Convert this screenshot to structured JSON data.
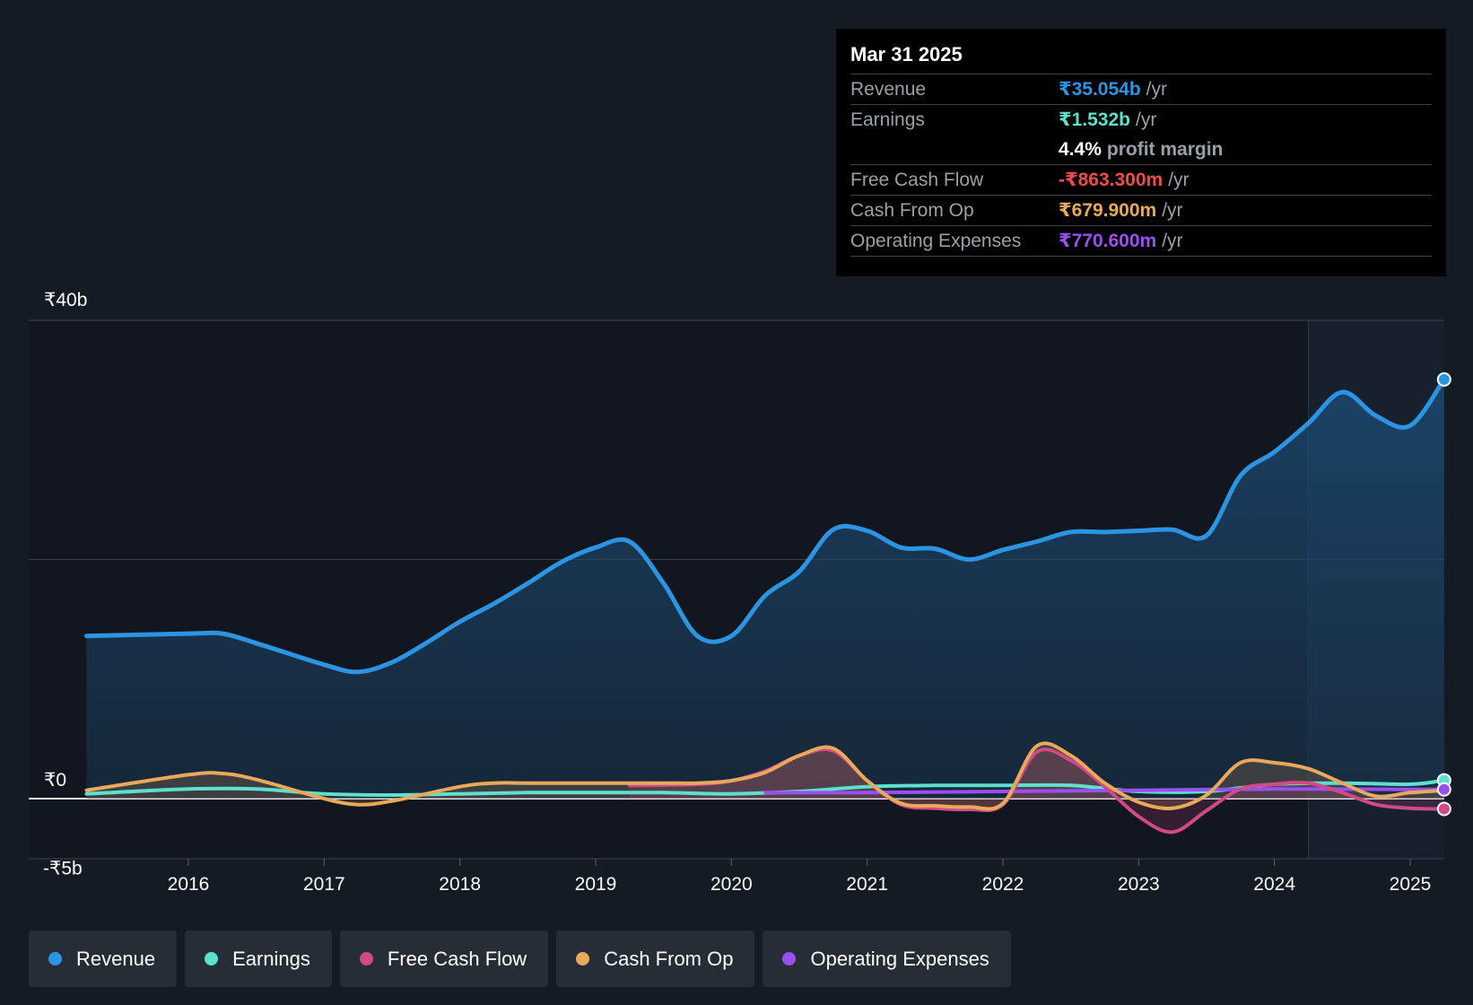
{
  "colors": {
    "revenue": "#2b95e3",
    "earnings": "#5ee0cf",
    "fcf": "#cf4a86",
    "cfo": "#e8a95a",
    "opex": "#9b4ff0",
    "negative": "#f04b4b",
    "background": "#151b24",
    "plot_bg": "#161c24"
  },
  "tooltip": {
    "date": "Mar 31 2025",
    "revenue": {
      "label": "Revenue",
      "value": "₹35.054b",
      "unit": "/yr"
    },
    "earnings": {
      "label": "Earnings",
      "value": "₹1.532b",
      "unit": "/yr"
    },
    "margin": {
      "value": "4.4%",
      "label": "profit margin"
    },
    "fcf": {
      "label": "Free Cash Flow",
      "value": "-₹863.300m",
      "unit": "/yr"
    },
    "cfo": {
      "label": "Cash From Op",
      "value": "₹679.900m",
      "unit": "/yr"
    },
    "opex": {
      "label": "Operating Expenses",
      "value": "₹770.600m",
      "unit": "/yr"
    }
  },
  "legend": [
    {
      "label": "Revenue",
      "key": "revenue"
    },
    {
      "label": "Earnings",
      "key": "earnings"
    },
    {
      "label": "Free Cash Flow",
      "key": "fcf"
    },
    {
      "label": "Cash From Op",
      "key": "cfo"
    },
    {
      "label": "Operating Expenses",
      "key": "opex"
    }
  ],
  "chart_data": {
    "type": "area",
    "title": "",
    "xlabel": "",
    "ylabel": "",
    "unit": "₹ billions",
    "xlim": [
      2015.25,
      2025.25
    ],
    "ylim": [
      -5,
      40
    ],
    "y_tick_labels": [
      {
        "value": 40,
        "label": "₹40b"
      },
      {
        "value": 0,
        "label": "₹0"
      },
      {
        "value": -5,
        "label": "-₹5b"
      }
    ],
    "gridlines": [
      40,
      20,
      0
    ],
    "x_tick_labels": [
      "2016",
      "2017",
      "2018",
      "2019",
      "2020",
      "2021",
      "2022",
      "2023",
      "2024",
      "2025"
    ],
    "x_ticks": [
      2016,
      2017,
      2018,
      2019,
      2020,
      2021,
      2022,
      2023,
      2024,
      2025
    ],
    "highlight_start": 2024.25,
    "series": [
      {
        "name": "Revenue",
        "key": "revenue",
        "x": [
          2015.25,
          2016.0,
          2016.25,
          2016.5,
          2017.0,
          2017.25,
          2017.5,
          2017.75,
          2018.0,
          2018.25,
          2018.5,
          2018.75,
          2019.0,
          2019.25,
          2019.5,
          2019.75,
          2020.0,
          2020.25,
          2020.5,
          2020.75,
          2021.0,
          2021.25,
          2021.5,
          2021.75,
          2022.0,
          2022.25,
          2022.5,
          2022.75,
          2023.0,
          2023.25,
          2023.5,
          2023.75,
          2024.0,
          2024.25,
          2024.5,
          2024.75,
          2025.0,
          2025.25
        ],
        "values": [
          13.6,
          13.8,
          13.8,
          13.0,
          11.2,
          10.6,
          11.4,
          13.0,
          14.8,
          16.3,
          18.0,
          19.8,
          21.0,
          21.5,
          18.0,
          13.6,
          13.6,
          17.0,
          19.0,
          22.5,
          22.4,
          21.0,
          20.9,
          20.0,
          20.8,
          21.5,
          22.3,
          22.3,
          22.4,
          22.5,
          22.0,
          27.0,
          29.0,
          31.4,
          34.0,
          32.0,
          31.2,
          35.054
        ]
      },
      {
        "name": "Earnings",
        "key": "earnings",
        "x": [
          2015.25,
          2016.0,
          2016.5,
          2017.0,
          2017.5,
          2018.0,
          2018.5,
          2019.0,
          2019.5,
          2020.0,
          2020.5,
          2021.0,
          2021.5,
          2022.0,
          2022.5,
          2023.0,
          2023.5,
          2024.0,
          2024.5,
          2025.0,
          2025.25
        ],
        "values": [
          0.4,
          0.8,
          0.8,
          0.4,
          0.3,
          0.4,
          0.5,
          0.5,
          0.5,
          0.4,
          0.6,
          1.0,
          1.1,
          1.1,
          1.1,
          0.6,
          0.6,
          1.2,
          1.3,
          1.2,
          1.532
        ]
      },
      {
        "name": "Free Cash Flow",
        "key": "fcf",
        "x": [
          2019.25,
          2019.75,
          2020.0,
          2020.25,
          2020.5,
          2020.75,
          2021.0,
          2021.25,
          2021.5,
          2021.75,
          2022.0,
          2022.25,
          2022.5,
          2022.75,
          2023.0,
          2023.25,
          2023.5,
          2023.75,
          2024.0,
          2024.25,
          2024.5,
          2024.75,
          2025.0,
          2025.25
        ],
        "values": [
          1.1,
          1.2,
          1.5,
          2.3,
          3.6,
          4.0,
          1.5,
          -0.5,
          -0.8,
          -0.9,
          -0.5,
          3.9,
          3.2,
          1.0,
          -1.5,
          -2.8,
          -1.0,
          0.8,
          1.2,
          1.3,
          0.5,
          -0.5,
          -0.8,
          -0.8633
        ]
      },
      {
        "name": "Cash From Op",
        "key": "cfo",
        "x": [
          2015.25,
          2016.0,
          2016.25,
          2016.5,
          2017.0,
          2017.25,
          2017.5,
          2018.0,
          2018.25,
          2018.5,
          2019.0,
          2019.5,
          2019.75,
          2020.0,
          2020.25,
          2020.5,
          2020.75,
          2021.0,
          2021.25,
          2021.5,
          2021.75,
          2022.0,
          2022.25,
          2022.5,
          2022.75,
          2023.0,
          2023.25,
          2023.5,
          2023.75,
          2024.0,
          2024.25,
          2024.5,
          2024.75,
          2025.0,
          2025.25
        ],
        "values": [
          0.7,
          2.0,
          2.1,
          1.6,
          0.0,
          -0.5,
          -0.2,
          1.0,
          1.3,
          1.3,
          1.3,
          1.3,
          1.3,
          1.5,
          2.2,
          3.6,
          4.2,
          1.5,
          -0.4,
          -0.6,
          -0.7,
          -0.4,
          4.4,
          3.6,
          1.3,
          -0.3,
          -0.8,
          0.3,
          3.0,
          3.0,
          2.5,
          1.3,
          0.2,
          0.5,
          0.6799
        ]
      },
      {
        "name": "Operating Expenses",
        "key": "opex",
        "x": [
          2020.25,
          2021.0,
          2022.0,
          2023.0,
          2024.0,
          2025.0,
          2025.25
        ],
        "values": [
          0.5,
          0.5,
          0.6,
          0.7,
          0.8,
          0.77,
          0.7706
        ]
      }
    ]
  }
}
